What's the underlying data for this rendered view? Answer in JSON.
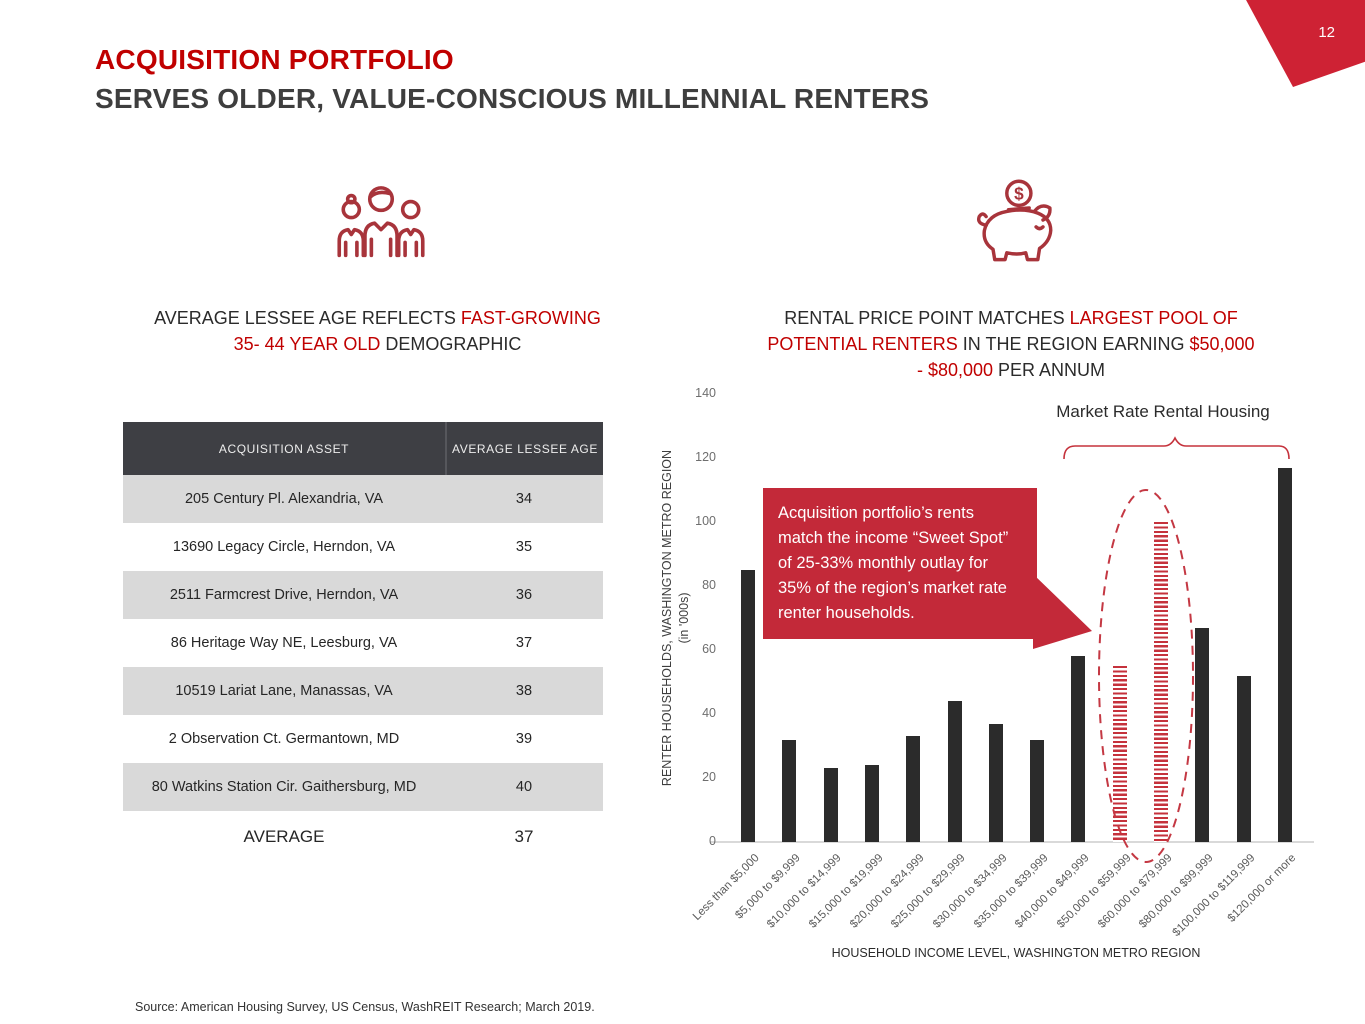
{
  "page": {
    "number": "12"
  },
  "title": {
    "line1": "ACQUISITION PORTFOLIO",
    "line2": "SERVES OLDER, VALUE-CONSCIOUS MILLENNIAL RENTERS"
  },
  "left": {
    "icon": "people-icon",
    "heading_segments": [
      {
        "text": "AVERAGE LESSEE AGE REFLECTS ",
        "red": false
      },
      {
        "text": "FAST-GROWING",
        "red": true,
        "break": true
      },
      {
        "text": "35- 44 YEAR OLD",
        "red": true
      },
      {
        "text": " DEMOGRAPHIC",
        "red": false
      }
    ],
    "table": {
      "headers": [
        "ACQUISITION ASSET",
        "AVERAGE LESSEE AGE"
      ],
      "rows": [
        [
          "205 Century Pl. Alexandria, VA",
          "34"
        ],
        [
          "13690 Legacy Circle, Herndon, VA",
          "35"
        ],
        [
          "2511 Farmcrest Drive, Herndon, VA",
          "36"
        ],
        [
          "86 Heritage Way NE, Leesburg, VA",
          "37"
        ],
        [
          "10519 Lariat Lane, Manassas, VA",
          "38"
        ],
        [
          "2 Observation Ct. Germantown, MD",
          "39"
        ],
        [
          "80 Watkins Station Cir. Gaithersburg, MD",
          "40"
        ]
      ],
      "footer": [
        "AVERAGE",
        "37"
      ]
    }
  },
  "right": {
    "icon": "piggy-bank-icon",
    "heading_segments": [
      {
        "text": "RENTAL PRICE POINT MATCHES ",
        "red": false
      },
      {
        "text": "LARGEST POOL OF",
        "red": true,
        "break": true
      },
      {
        "text": "POTENTIAL RENTERS",
        "red": true
      },
      {
        "text": " IN THE REGION EARNING ",
        "red": false
      },
      {
        "text": "$50,000",
        "red": true,
        "break": true
      },
      {
        "text": "- $80,000",
        "red": true
      },
      {
        "text": " PER ANNUM",
        "red": false
      }
    ]
  },
  "chart_data": {
    "type": "bar",
    "categories": [
      "Less than $5,000",
      "$5,000 to $9,999",
      "$10,000 to $14,999",
      "$15,000 to $19,999",
      "$20,000 to $24,999",
      "$25,000 to $29,999",
      "$30,000 to $34,999",
      "$35,000 to $39,999",
      "$40,000 to $49,999",
      "$50,000 to $59,999",
      "$60,000 to $79,999",
      "$80,000 to $99,999",
      "$100,000 to $119,999",
      "$120,000 or more"
    ],
    "values": [
      85,
      32,
      23,
      24,
      33,
      44,
      37,
      32,
      58,
      55,
      100,
      67,
      52,
      117
    ],
    "highlight_indices": [
      9,
      10
    ],
    "highlight_style": "red-striped-circled",
    "yticks": [
      0,
      20,
      40,
      60,
      80,
      100,
      120,
      140
    ],
    "ylim": [
      0,
      140
    ],
    "grid": false,
    "legend": "none",
    "ylabel": "RENTER HOUSEHOLDS, WASHINGTON METRO REGION",
    "ylabel_sub": "(in '000s)",
    "xlabel": "HOUSEHOLD INCOME LEVEL, WASHINGTON METRO REGION",
    "bracket_label": "Market Rate Rental Housing",
    "annotation": "Acquisition portfolio’s rents match the income “Sweet Spot” of 25-33% monthly outlay for 35% of the region’s market rate renter households."
  },
  "footer": {
    "source": "Source: American Housing Survey, US Census, WashREIT Research; March 2019."
  },
  "colors": {
    "accent_red": "#C00000",
    "callout_red": "#C32939",
    "corner_red": "#CE2234",
    "icon_red": "#A8343B",
    "stripe_red": "#C5323C",
    "bar_dark": "#2B2B2B",
    "header_bg": "#3E3F44",
    "row_gray": "#D9D9D9",
    "tick_gray": "#6E6E6E"
  }
}
